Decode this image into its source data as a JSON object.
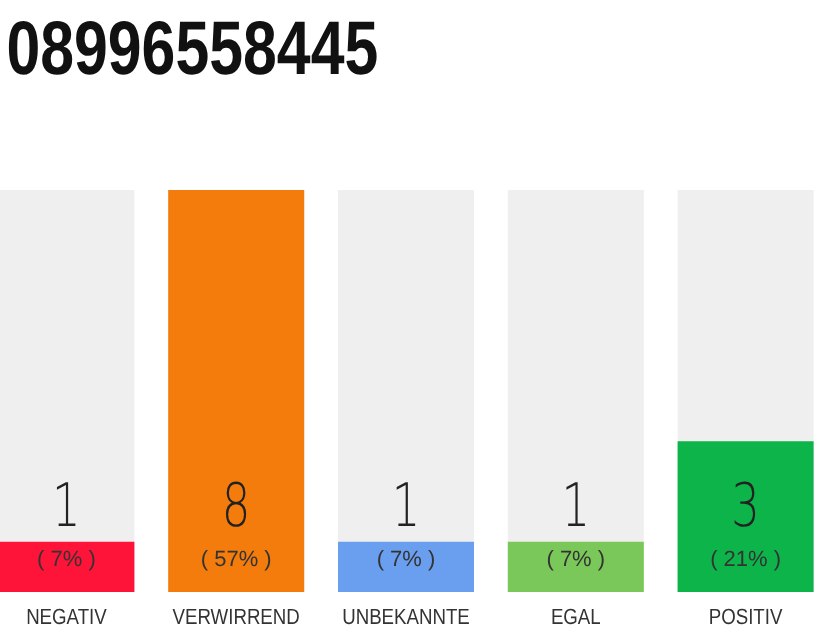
{
  "chart_data": {
    "type": "bar",
    "title": "08996558445",
    "categories": [
      "NEGATIV",
      "VERWIRREND",
      "UNBEKANNTE",
      "EGAL",
      "POSITIV"
    ],
    "values": [
      1,
      8,
      1,
      1,
      3
    ],
    "colors": [
      "#ff1439",
      "#f47c0c",
      "#6a9ff0",
      "#7bc85a",
      "#0db44a"
    ],
    "ylim": [
      0,
      8
    ],
    "tick_labels": "x",
    "data_labels": true,
    "annotations": [
      "( 7% )",
      "( 57% )",
      "( 7% )",
      "( 7% )",
      "( 21% )"
    ]
  }
}
